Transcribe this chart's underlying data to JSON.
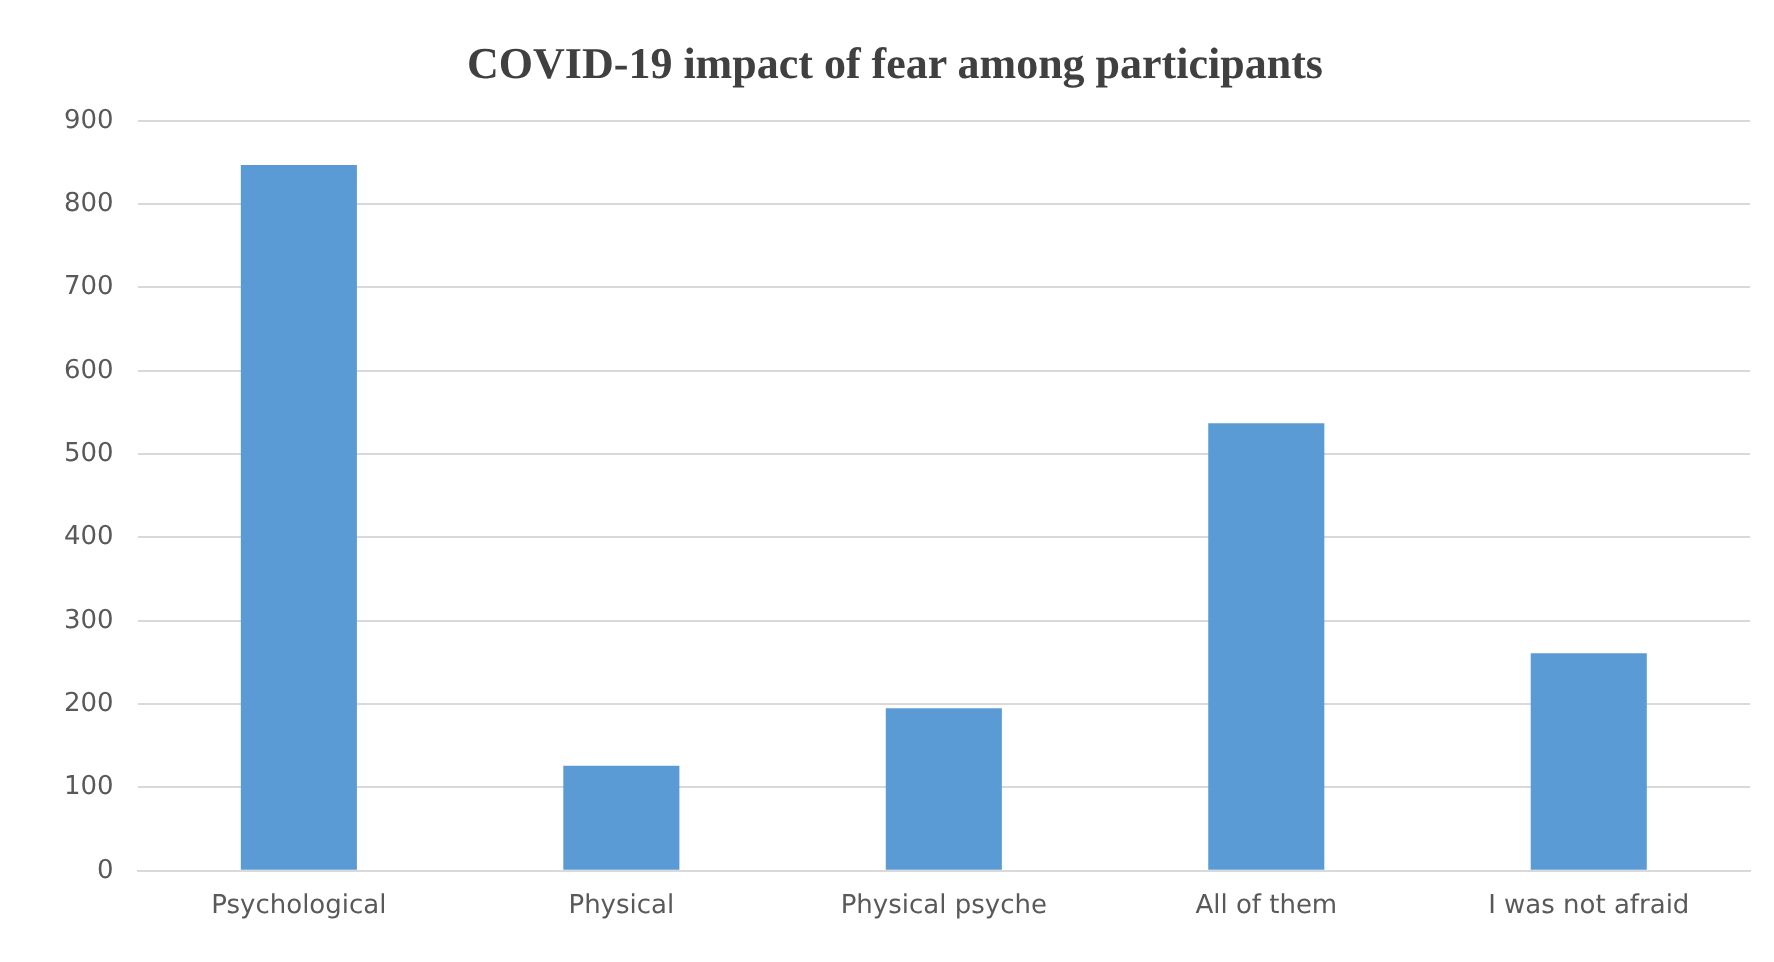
{
  "chart_data": {
    "type": "bar",
    "title": "COVID-19 impact of fear among participants",
    "categories": [
      "Psychological",
      "Physical",
      "Physical psyche",
      "All of them",
      "I was not afraid"
    ],
    "values": [
      847,
      126,
      195,
      537,
      261
    ],
    "color": "#5b9bd5",
    "ylim": [
      0,
      900
    ],
    "yticks": [
      0,
      100,
      200,
      300,
      400,
      500,
      600,
      700,
      800,
      900
    ],
    "grid": "y"
  }
}
